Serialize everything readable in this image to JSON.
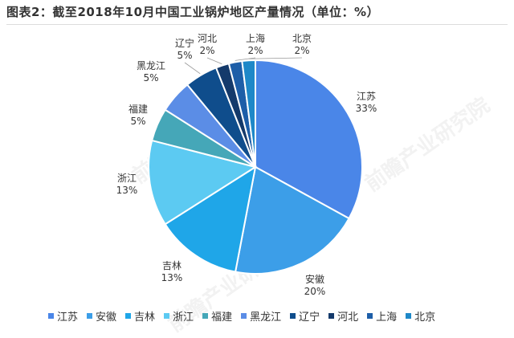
{
  "title": "图表2：截至2018年10月中国工业锅炉地区产量情况（单位：%）",
  "watermark": "前瞻产业研究院",
  "chart_data": {
    "type": "pie",
    "title": "图表2：截至2018年10月中国工业锅炉地区产量情况（单位：%）",
    "unit": "%",
    "legend_position": "bottom",
    "slices": [
      {
        "name": "江苏",
        "value": 33,
        "label": "33%",
        "color": "#4a86e8"
      },
      {
        "name": "安徽",
        "value": 20,
        "label": "20%",
        "color": "#3c9ee8"
      },
      {
        "name": "吉林",
        "value": 13,
        "label": "13%",
        "color": "#1fa6e8"
      },
      {
        "name": "浙江",
        "value": 13,
        "label": "13%",
        "color": "#5ccaf2"
      },
      {
        "name": "福建",
        "value": 5,
        "label": "5%",
        "color": "#45a7b8"
      },
      {
        "name": "黑龙江",
        "value": 5,
        "label": "5%",
        "color": "#5b8de6"
      },
      {
        "name": "辽宁",
        "value": 5,
        "label": "5%",
        "color": "#0f4d8c"
      },
      {
        "name": "河北",
        "value": 2,
        "label": "2%",
        "color": "#143a6b"
      },
      {
        "name": "上海",
        "value": 2,
        "label": "2%",
        "color": "#1d5ea8"
      },
      {
        "name": "北京",
        "value": 2,
        "label": "2%",
        "color": "#1e88c8"
      }
    ]
  }
}
